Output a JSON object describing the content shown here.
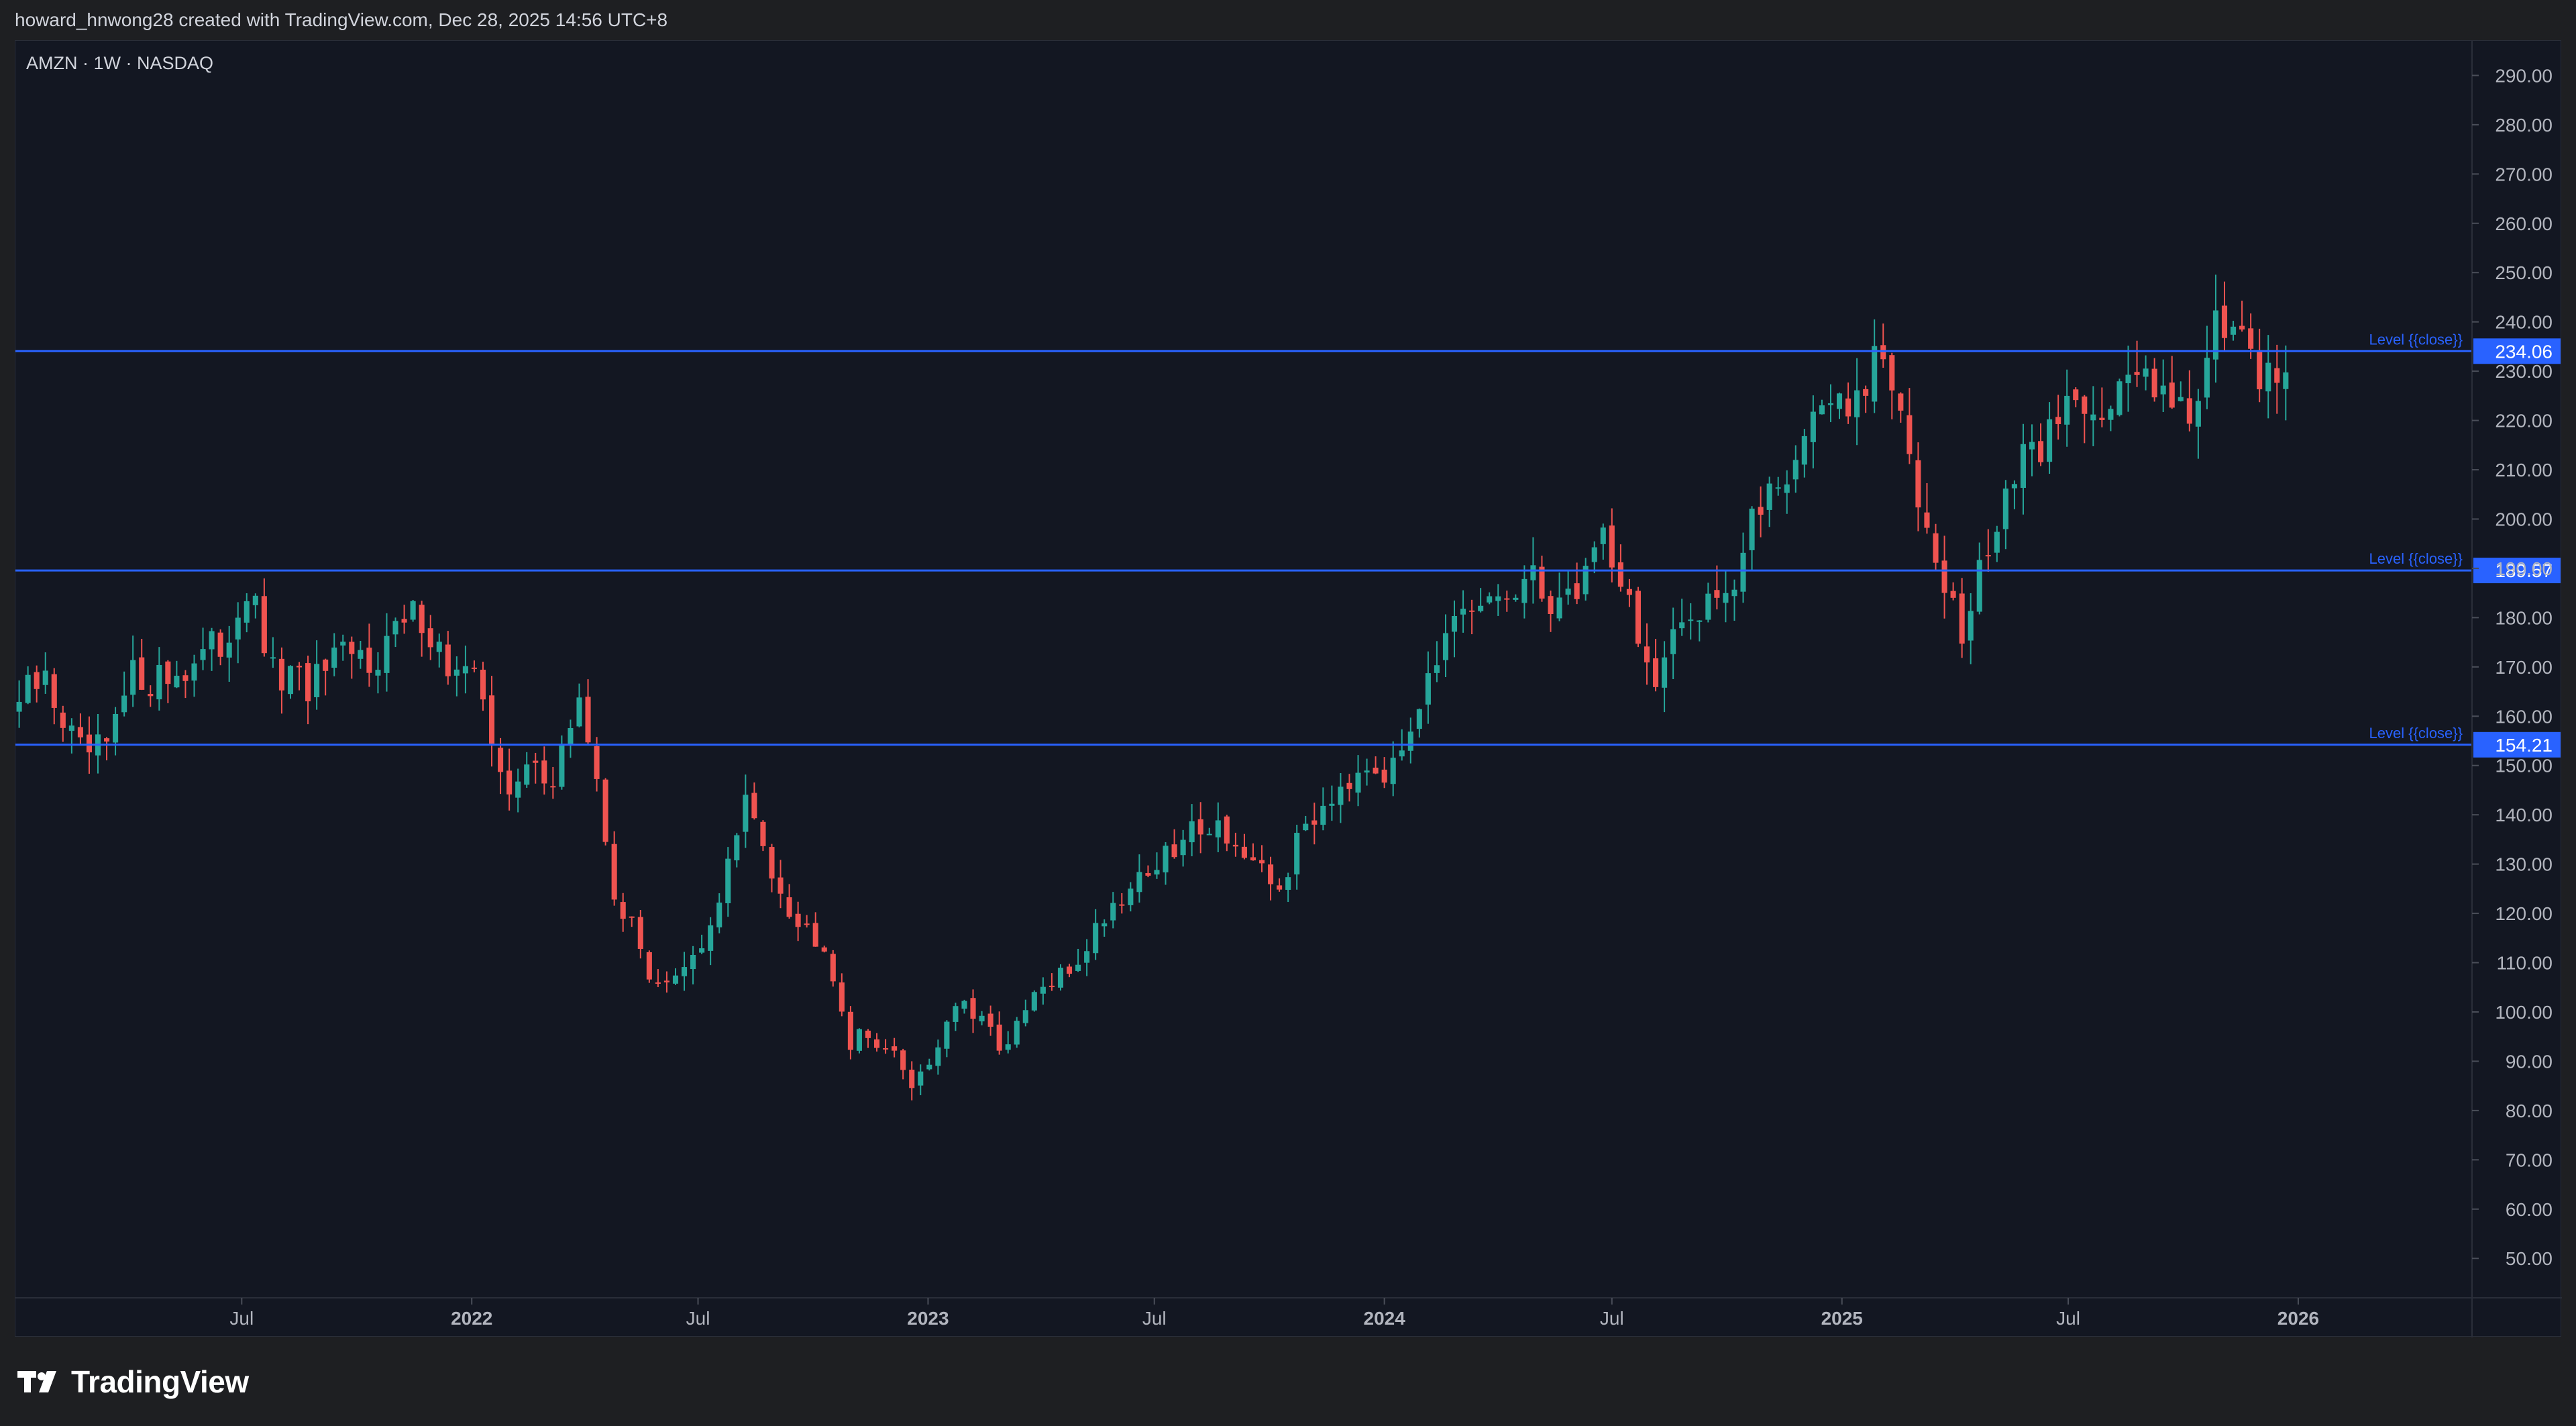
{
  "header": {
    "text": "howard_hnwong28 created with TradingView.com, Dec 28, 2025 14:56 UTC+8"
  },
  "chart_data": {
    "type": "candlestick",
    "symbol": "AMZN · 1W · NASDAQ",
    "ylim": [
      42,
      297
    ],
    "y_ticks": [
      "50.00",
      "60.00",
      "70.00",
      "80.00",
      "90.00",
      "100.00",
      "110.00",
      "120.00",
      "130.00",
      "140.00",
      "150.00",
      "160.00",
      "170.00",
      "180.00",
      "190.00",
      "200.00",
      "210.00",
      "220.00",
      "230.00",
      "240.00",
      "250.00",
      "260.00",
      "270.00",
      "280.00",
      "290.00"
    ],
    "x_ticks": [
      {
        "label": "Jul",
        "date": "2021-07-01",
        "bold": false
      },
      {
        "label": "2022",
        "date": "2022-01-01",
        "bold": true
      },
      {
        "label": "Jul",
        "date": "2022-07-01",
        "bold": false
      },
      {
        "label": "2023",
        "date": "2023-01-01",
        "bold": true
      },
      {
        "label": "Jul",
        "date": "2023-07-01",
        "bold": false
      },
      {
        "label": "2024",
        "date": "2024-01-01",
        "bold": true
      },
      {
        "label": "Jul",
        "date": "2024-07-01",
        "bold": false
      },
      {
        "label": "2025",
        "date": "2025-01-01",
        "bold": true
      },
      {
        "label": "Jul",
        "date": "2025-07-01",
        "bold": false
      },
      {
        "label": "2026",
        "date": "2026-01-01",
        "bold": true
      }
    ],
    "x_range": [
      "2021-01-01",
      "2026-05-20"
    ],
    "levels": [
      {
        "price": 234.06,
        "label": "234.06",
        "text": "Level {{close}}"
      },
      {
        "price": 189.57,
        "label": "189.57",
        "text": "Level {{close}}"
      },
      {
        "price": 154.21,
        "label": "154.21",
        "text": "Level {{close}}"
      }
    ],
    "anchors": [
      [
        "2021-01-04",
        163
      ],
      [
        "2021-01-25",
        167
      ],
      [
        "2021-02-22",
        152
      ],
      [
        "2021-03-15",
        153
      ],
      [
        "2021-04-05",
        168
      ],
      [
        "2021-05-03",
        168
      ],
      [
        "2021-06-14",
        174
      ],
      [
        "2021-07-05",
        186
      ],
      [
        "2021-07-26",
        168
      ],
      [
        "2021-08-23",
        166
      ],
      [
        "2021-09-20",
        171
      ],
      [
        "2021-10-11",
        172
      ],
      [
        "2021-11-01",
        177
      ],
      [
        "2021-11-22",
        181
      ],
      [
        "2021-12-13",
        170
      ],
      [
        "2022-01-10",
        165
      ],
      [
        "2022-01-31",
        142
      ],
      [
        "2022-02-21",
        153
      ],
      [
        "2022-03-07",
        145
      ],
      [
        "2022-03-28",
        165
      ],
      [
        "2022-04-25",
        125
      ],
      [
        "2022-05-23",
        108
      ],
      [
        "2022-06-13",
        106
      ],
      [
        "2022-07-04",
        112
      ],
      [
        "2022-08-08",
        142
      ],
      [
        "2022-08-29",
        130
      ],
      [
        "2022-09-19",
        118
      ],
      [
        "2022-10-10",
        115
      ],
      [
        "2022-10-31",
        94
      ],
      [
        "2022-11-21",
        95
      ],
      [
        "2022-12-19",
        86
      ],
      [
        "2023-01-02",
        90
      ],
      [
        "2023-01-23",
        102
      ],
      [
        "2023-02-13",
        97
      ],
      [
        "2023-03-06",
        93
      ],
      [
        "2023-03-27",
        103
      ],
      [
        "2023-04-24",
        108
      ],
      [
        "2023-05-22",
        120
      ],
      [
        "2023-06-19",
        128
      ],
      [
        "2023-07-17",
        132
      ],
      [
        "2023-08-07",
        139
      ],
      [
        "2023-08-28",
        137
      ],
      [
        "2023-09-18",
        128
      ],
      [
        "2023-10-09",
        125
      ],
      [
        "2023-10-30",
        138
      ],
      [
        "2023-11-27",
        147
      ],
      [
        "2023-12-18",
        152
      ],
      [
        "2024-01-08",
        148
      ],
      [
        "2024-02-05",
        171
      ],
      [
        "2024-03-04",
        178
      ],
      [
        "2024-04-01",
        184
      ],
      [
        "2024-04-29",
        186
      ],
      [
        "2024-05-27",
        183
      ],
      [
        "2024-06-24",
        198
      ],
      [
        "2024-07-15",
        183
      ],
      [
        "2024-08-05",
        165
      ],
      [
        "2024-08-26",
        178
      ],
      [
        "2024-09-16",
        186
      ],
      [
        "2024-10-07",
        187
      ],
      [
        "2024-11-04",
        208
      ],
      [
        "2024-11-25",
        212
      ],
      [
        "2024-12-16",
        226
      ],
      [
        "2025-01-06",
        220
      ],
      [
        "2025-02-03",
        233
      ],
      [
        "2025-02-24",
        212
      ],
      [
        "2025-03-17",
        196
      ],
      [
        "2025-04-07",
        175
      ],
      [
        "2025-04-21",
        188
      ],
      [
        "2025-05-12",
        206
      ],
      [
        "2025-06-02",
        212
      ],
      [
        "2025-06-23",
        222
      ],
      [
        "2025-07-14",
        226
      ],
      [
        "2025-08-04",
        222
      ],
      [
        "2025-08-25",
        229
      ],
      [
        "2025-09-15",
        231
      ],
      [
        "2025-10-06",
        218
      ],
      [
        "2025-10-27",
        245
      ],
      [
        "2025-11-10",
        238
      ],
      [
        "2025-11-24",
        229
      ],
      [
        "2025-12-22",
        232
      ]
    ]
  }
}
